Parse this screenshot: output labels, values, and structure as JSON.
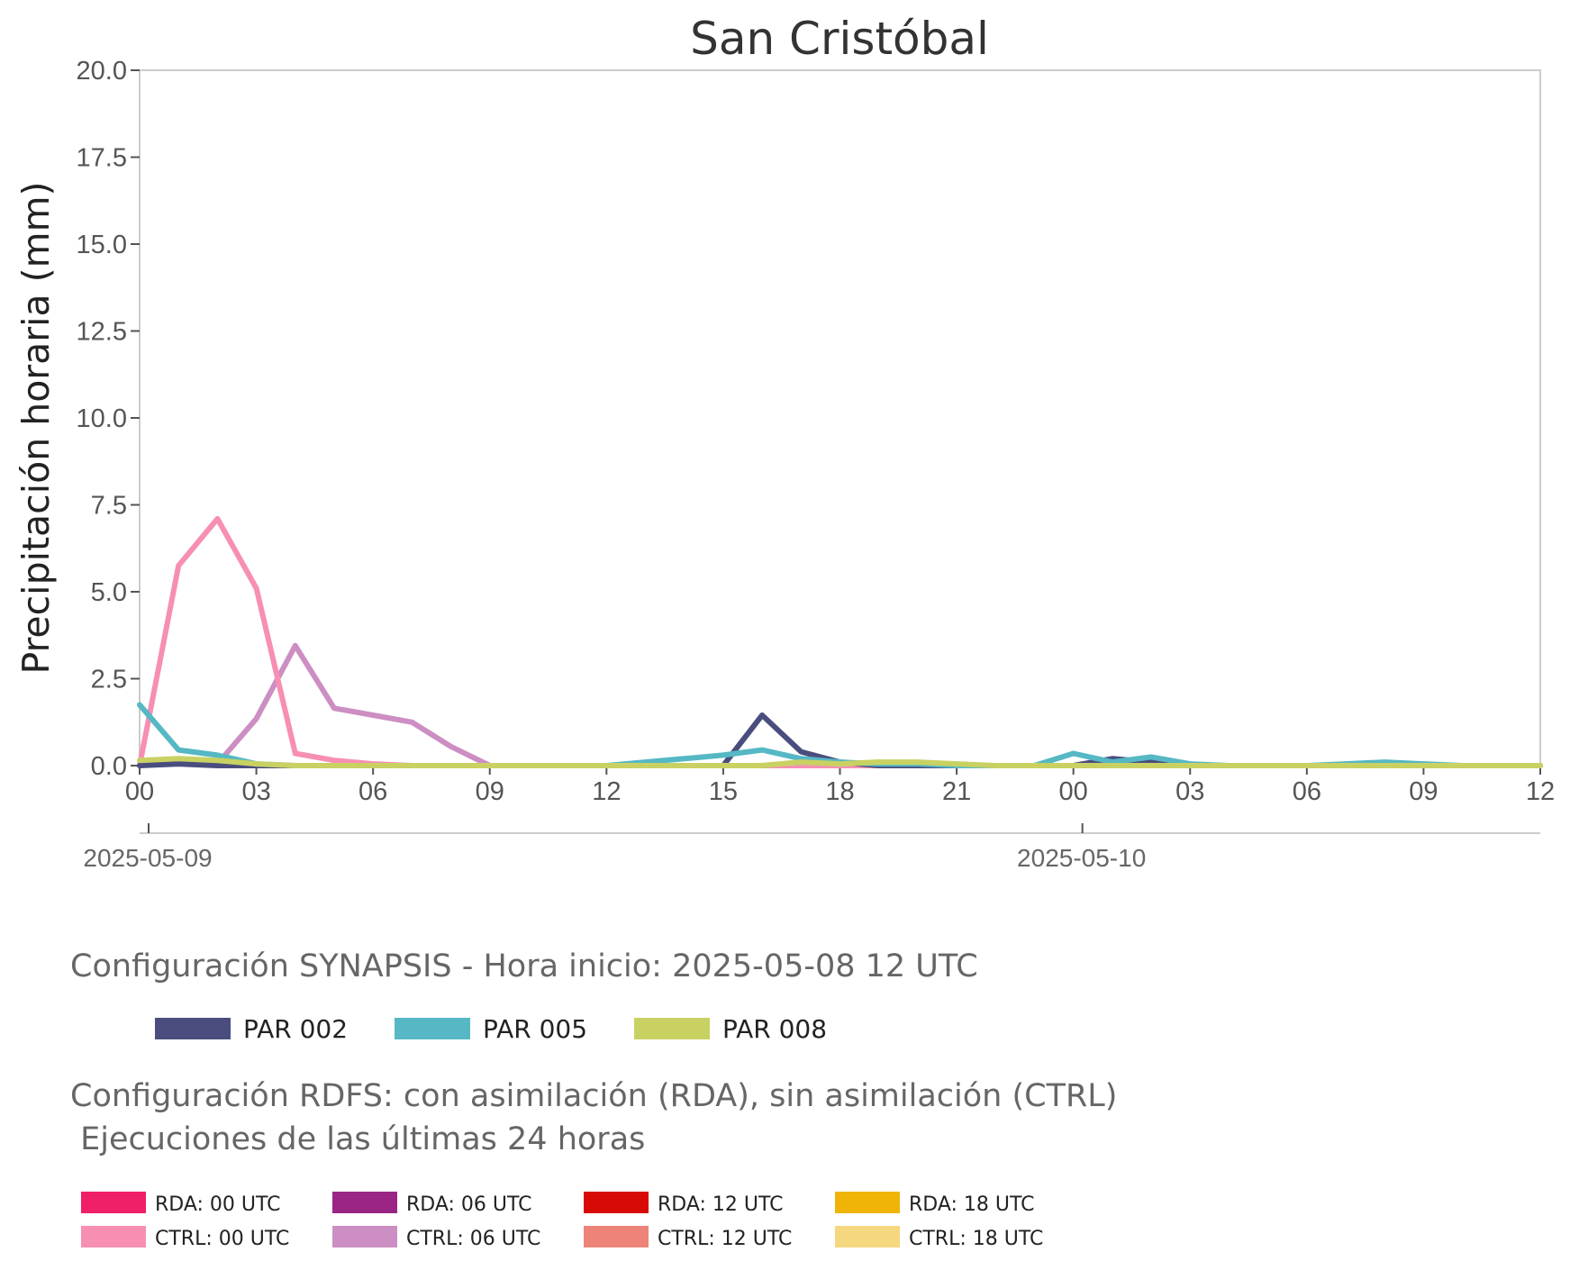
{
  "chart_data": {
    "type": "line",
    "title": "San Cristóbal",
    "ylabel": "Precipitación horaria (mm)",
    "xlabel": "",
    "ylim": [
      0,
      20
    ],
    "yticks": [
      "0.0",
      "2.5",
      "5.0",
      "7.5",
      "10.0",
      "12.5",
      "15.0",
      "17.5",
      "20.0"
    ],
    "xticks": [
      "00",
      "03",
      "06",
      "09",
      "12",
      "15",
      "18",
      "21",
      "00",
      "03",
      "06",
      "09",
      "12"
    ],
    "dates": [
      "2025-05-09",
      "2025-05-10"
    ],
    "grid": false,
    "series": [
      {
        "name": "CTRL: 06 UTC",
        "color": "#cc8ec3",
        "points": [
          [
            0,
            0
          ],
          [
            1,
            0.1
          ],
          [
            2,
            0.05
          ],
          [
            3,
            1.35
          ],
          [
            4,
            3.45
          ],
          [
            5,
            1.65
          ],
          [
            6,
            1.45
          ],
          [
            7,
            1.25
          ],
          [
            8,
            0.55
          ],
          [
            9,
            0
          ],
          [
            10,
            0
          ],
          [
            11,
            0
          ],
          [
            12,
            0
          ],
          [
            13,
            0
          ],
          [
            14,
            0
          ],
          [
            15,
            0
          ],
          [
            16,
            0
          ],
          [
            17,
            0
          ],
          [
            18,
            0
          ],
          [
            19,
            0
          ],
          [
            20,
            0
          ],
          [
            21,
            0
          ],
          [
            22,
            0
          ],
          [
            23,
            0
          ],
          [
            24,
            0
          ],
          [
            25,
            0
          ],
          [
            26,
            0
          ],
          [
            27,
            0
          ],
          [
            28,
            0
          ]
        ]
      },
      {
        "name": "CTRL: 18 UTC",
        "color": "#f5d77f",
        "points": [
          [
            15,
            0
          ],
          [
            16,
            0
          ],
          [
            17,
            0.1
          ],
          [
            18,
            0.05
          ],
          [
            19,
            0.1
          ],
          [
            20,
            0.05
          ],
          [
            21,
            0
          ],
          [
            22,
            0
          ],
          [
            23,
            0
          ],
          [
            24,
            0
          ],
          [
            25,
            0
          ],
          [
            26,
            0
          ],
          [
            27,
            0
          ],
          [
            28,
            0
          ],
          [
            29,
            0
          ],
          [
            30,
            0
          ],
          [
            31,
            0
          ],
          [
            32,
            0
          ],
          [
            33,
            0
          ],
          [
            34,
            0
          ],
          [
            35,
            0
          ],
          [
            36,
            0
          ]
        ]
      },
      {
        "name": "CTRL: 12 UTC",
        "color": "#ee8479",
        "points": [
          [
            3,
            0
          ],
          [
            4,
            0
          ],
          [
            5,
            0
          ],
          [
            6,
            0
          ],
          [
            7,
            0
          ],
          [
            8,
            0
          ],
          [
            9,
            0
          ],
          [
            10,
            0
          ],
          [
            11,
            0
          ],
          [
            12,
            0
          ],
          [
            13,
            0
          ],
          [
            14,
            0
          ],
          [
            15,
            0
          ],
          [
            16,
            0
          ],
          [
            17,
            0
          ],
          [
            18,
            0
          ],
          [
            19,
            0
          ],
          [
            20,
            0
          ],
          [
            21,
            0
          ],
          [
            22,
            0
          ],
          [
            23,
            0
          ],
          [
            24,
            0
          ],
          [
            25,
            0
          ],
          [
            26,
            0
          ],
          [
            27,
            0
          ],
          [
            28,
            0
          ]
        ]
      },
      {
        "name": "CTRL: 00 UTC",
        "color": "#f78fb3",
        "points": [
          [
            0,
            0
          ],
          [
            1,
            5.75
          ],
          [
            2,
            7.1
          ],
          [
            3,
            5.1
          ],
          [
            4,
            0.35
          ],
          [
            5,
            0.15
          ],
          [
            6,
            0.05
          ],
          [
            7,
            0
          ],
          [
            8,
            0
          ],
          [
            9,
            0
          ],
          [
            10,
            0
          ],
          [
            11,
            0
          ],
          [
            12,
            0
          ],
          [
            13,
            0
          ],
          [
            14,
            0
          ],
          [
            15,
            0
          ],
          [
            16,
            0
          ],
          [
            17,
            0
          ],
          [
            18,
            0
          ],
          [
            19,
            0
          ],
          [
            20,
            0
          ],
          [
            21,
            0
          ],
          [
            22,
            0
          ],
          [
            23,
            0
          ],
          [
            24,
            0
          ],
          [
            25,
            0
          ],
          [
            26,
            0
          ],
          [
            27,
            0
          ],
          [
            28,
            0
          ]
        ]
      },
      {
        "name": "PAR 002",
        "color": "#4a4e7e",
        "points": [
          [
            0,
            0
          ],
          [
            1,
            0.05
          ],
          [
            2,
            0
          ],
          [
            3,
            0
          ],
          [
            4,
            0
          ],
          [
            5,
            0
          ],
          [
            6,
            0
          ],
          [
            7,
            0
          ],
          [
            8,
            0
          ],
          [
            9,
            0
          ],
          [
            10,
            0
          ],
          [
            11,
            0
          ],
          [
            12,
            0
          ],
          [
            13,
            0
          ],
          [
            14,
            0
          ],
          [
            15,
            0
          ],
          [
            16,
            1.45
          ],
          [
            17,
            0.4
          ],
          [
            18,
            0.1
          ],
          [
            19,
            0
          ],
          [
            20,
            0
          ],
          [
            21,
            0
          ],
          [
            22,
            0
          ],
          [
            23,
            0
          ],
          [
            24,
            0
          ],
          [
            25,
            0.2
          ],
          [
            26,
            0.1
          ],
          [
            27,
            0
          ],
          [
            28,
            0
          ],
          [
            29,
            0
          ],
          [
            30,
            0
          ],
          [
            31,
            0
          ],
          [
            32,
            0
          ],
          [
            33,
            0
          ],
          [
            34,
            0
          ],
          [
            35,
            0
          ],
          [
            36,
            0
          ]
        ]
      },
      {
        "name": "PAR 005",
        "color": "#55b8c4",
        "points": [
          [
            0,
            1.75
          ],
          [
            1,
            0.45
          ],
          [
            2,
            0.3
          ],
          [
            3,
            0.05
          ],
          [
            4,
            0
          ],
          [
            5,
            0
          ],
          [
            6,
            0
          ],
          [
            7,
            0
          ],
          [
            8,
            0
          ],
          [
            9,
            0
          ],
          [
            10,
            0
          ],
          [
            11,
            0
          ],
          [
            12,
            0
          ],
          [
            13,
            0.1
          ],
          [
            14,
            0.2
          ],
          [
            15,
            0.3
          ],
          [
            16,
            0.45
          ],
          [
            17,
            0.2
          ],
          [
            18,
            0.1
          ],
          [
            19,
            0.05
          ],
          [
            20,
            0.05
          ],
          [
            21,
            0
          ],
          [
            22,
            0
          ],
          [
            23,
            0
          ],
          [
            24,
            0.35
          ],
          [
            25,
            0.1
          ],
          [
            26,
            0.25
          ],
          [
            27,
            0.05
          ],
          [
            28,
            0
          ],
          [
            29,
            0
          ],
          [
            30,
            0
          ],
          [
            31,
            0.05
          ],
          [
            32,
            0.1
          ],
          [
            33,
            0.05
          ],
          [
            34,
            0
          ],
          [
            35,
            0
          ],
          [
            36,
            0
          ]
        ]
      },
      {
        "name": "PAR 008",
        "color": "#c9d163",
        "points": [
          [
            0,
            0.15
          ],
          [
            1,
            0.2
          ],
          [
            2,
            0.15
          ],
          [
            3,
            0.05
          ],
          [
            4,
            0
          ],
          [
            5,
            0
          ],
          [
            6,
            0
          ],
          [
            7,
            0
          ],
          [
            8,
            0
          ],
          [
            9,
            0
          ],
          [
            10,
            0
          ],
          [
            11,
            0
          ],
          [
            12,
            0
          ],
          [
            13,
            0
          ],
          [
            14,
            0
          ],
          [
            15,
            0
          ],
          [
            16,
            0
          ],
          [
            17,
            0.1
          ],
          [
            18,
            0.05
          ],
          [
            19,
            0.1
          ],
          [
            20,
            0.1
          ],
          [
            21,
            0.05
          ],
          [
            22,
            0
          ],
          [
            23,
            0
          ],
          [
            24,
            0
          ],
          [
            25,
            0
          ],
          [
            26,
            0
          ],
          [
            27,
            0
          ],
          [
            28,
            0
          ],
          [
            29,
            0
          ],
          [
            30,
            0
          ],
          [
            31,
            0
          ],
          [
            32,
            0
          ],
          [
            33,
            0
          ],
          [
            34,
            0
          ],
          [
            35,
            0
          ],
          [
            36,
            0
          ]
        ]
      }
    ]
  },
  "legend_synapsis": {
    "title": "Configuración SYNAPSIS - Hora inicio: 2025-05-08 12 UTC",
    "items": [
      {
        "label": "PAR 002",
        "color": "#4a4e7e"
      },
      {
        "label": "PAR 005",
        "color": "#55b8c4"
      },
      {
        "label": "PAR 008",
        "color": "#c9d163"
      }
    ]
  },
  "legend_rdfs": {
    "title_line1": "Configuración RDFS: con asimilación (RDA), sin asimilación (CTRL)",
    "title_line2": " Ejecuciones de las últimas 24 horas",
    "items": [
      {
        "label": "RDA: 00 UTC",
        "color": "#f01f6a"
      },
      {
        "label": "RDA: 06 UTC",
        "color": "#9b2585"
      },
      {
        "label": "RDA: 12 UTC",
        "color": "#d80a07"
      },
      {
        "label": "RDA: 18 UTC",
        "color": "#efb406"
      },
      {
        "label": "CTRL: 00 UTC",
        "color": "#f78fb3"
      },
      {
        "label": "CTRL: 06 UTC",
        "color": "#cc8ec3"
      },
      {
        "label": "CTRL: 12 UTC",
        "color": "#ee8479"
      },
      {
        "label": "CTRL: 18 UTC",
        "color": "#f5d77f"
      }
    ]
  }
}
